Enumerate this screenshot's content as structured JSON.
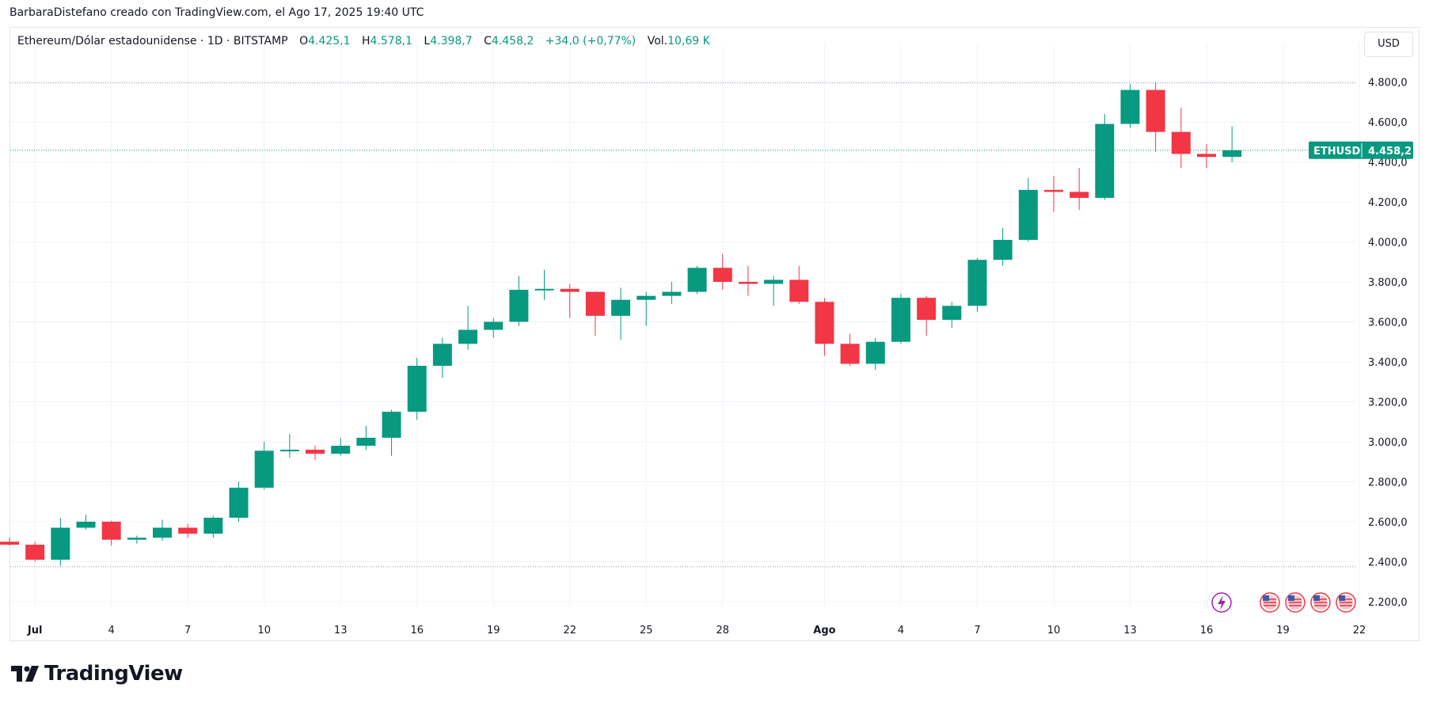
{
  "byline": "BarbaraDistefano creado con TradingView.com, el Ago 17, 2025 19:40 UTC",
  "legend": {
    "symbol": "Ethereum/Dólar estadounidense · 1D · BITSTAMP",
    "open_label": "O",
    "open": "4.425,1",
    "high_label": "H",
    "high": "4.578,1",
    "low_label": "L",
    "low": "4.398,7",
    "close_label": "C",
    "close": "4.458,2",
    "change": "+34,0 (+0,77%)",
    "vol_label": "Vol.",
    "vol": "10,69 K"
  },
  "currency_button": "USD",
  "price_tag": {
    "symbol": "ETHUSD",
    "value": "4.458,2"
  },
  "brand": "TradingView",
  "colors": {
    "up": "#089981",
    "down": "#f23645",
    "grid": "#f0f3fa",
    "text": "#131722"
  },
  "chart_data": {
    "type": "candlestick",
    "x_labels": [
      "Jul",
      "4",
      "7",
      "10",
      "13",
      "16",
      "19",
      "22",
      "25",
      "28",
      "Ago",
      "4",
      "7",
      "10",
      "13",
      "16",
      "19",
      "22"
    ],
    "y_ticks": [
      "2.200,0",
      "2.400,0",
      "2.600,0",
      "2.800,0",
      "3.000,0",
      "3.200,0",
      "3.400,0",
      "3.600,0",
      "3.800,0",
      "4.000,0",
      "4.200,0",
      "4.400,0",
      "4.600,0",
      "4.800,0"
    ],
    "ylim": [
      2150,
      4950
    ],
    "reference_lines": [
      4795,
      2375
    ],
    "current_price": 4458.2,
    "candles": [
      {
        "d": "Jun 30",
        "o": 2500,
        "h": 2520,
        "l": 2480,
        "c": 2485
      },
      {
        "d": "Jul 1",
        "o": 2485,
        "h": 2500,
        "l": 2400,
        "c": 2410
      },
      {
        "d": "Jul 2",
        "o": 2410,
        "h": 2620,
        "l": 2380,
        "c": 2570
      },
      {
        "d": "Jul 3",
        "o": 2570,
        "h": 2635,
        "l": 2560,
        "c": 2600
      },
      {
        "d": "Jul 4",
        "o": 2600,
        "h": 2605,
        "l": 2480,
        "c": 2510
      },
      {
        "d": "Jul 5",
        "o": 2510,
        "h": 2530,
        "l": 2490,
        "c": 2520
      },
      {
        "d": "Jul 6",
        "o": 2520,
        "h": 2610,
        "l": 2505,
        "c": 2570
      },
      {
        "d": "Jul 7",
        "o": 2570,
        "h": 2590,
        "l": 2520,
        "c": 2540
      },
      {
        "d": "Jul 8",
        "o": 2540,
        "h": 2630,
        "l": 2520,
        "c": 2620
      },
      {
        "d": "Jul 9",
        "o": 2620,
        "h": 2800,
        "l": 2600,
        "c": 2770
      },
      {
        "d": "Jul 10",
        "o": 2770,
        "h": 3000,
        "l": 2760,
        "c": 2955
      },
      {
        "d": "Jul 11",
        "o": 2955,
        "h": 3040,
        "l": 2920,
        "c": 2960
      },
      {
        "d": "Jul 12",
        "o": 2960,
        "h": 2980,
        "l": 2910,
        "c": 2940
      },
      {
        "d": "Jul 13",
        "o": 2940,
        "h": 3020,
        "l": 2930,
        "c": 2980
      },
      {
        "d": "Jul 14",
        "o": 2980,
        "h": 3080,
        "l": 2960,
        "c": 3020
      },
      {
        "d": "Jul 15",
        "o": 3020,
        "h": 3160,
        "l": 2930,
        "c": 3150
      },
      {
        "d": "Jul 16",
        "o": 3150,
        "h": 3420,
        "l": 3110,
        "c": 3380
      },
      {
        "d": "Jul 17",
        "o": 3380,
        "h": 3520,
        "l": 3320,
        "c": 3490
      },
      {
        "d": "Jul 18",
        "o": 3490,
        "h": 3680,
        "l": 3460,
        "c": 3560
      },
      {
        "d": "Jul 19",
        "o": 3560,
        "h": 3620,
        "l": 3520,
        "c": 3600
      },
      {
        "d": "Jul 20",
        "o": 3600,
        "h": 3830,
        "l": 3580,
        "c": 3760
      },
      {
        "d": "Jul 21",
        "o": 3760,
        "h": 3860,
        "l": 3710,
        "c": 3765
      },
      {
        "d": "Jul 22",
        "o": 3765,
        "h": 3790,
        "l": 3620,
        "c": 3750
      },
      {
        "d": "Jul 23",
        "o": 3750,
        "h": 3750,
        "l": 3530,
        "c": 3630
      },
      {
        "d": "Jul 24",
        "o": 3630,
        "h": 3770,
        "l": 3510,
        "c": 3710
      },
      {
        "d": "Jul 25",
        "o": 3710,
        "h": 3750,
        "l": 3580,
        "c": 3730
      },
      {
        "d": "Jul 26",
        "o": 3730,
        "h": 3800,
        "l": 3690,
        "c": 3750
      },
      {
        "d": "Jul 27",
        "o": 3750,
        "h": 3880,
        "l": 3740,
        "c": 3870
      },
      {
        "d": "Jul 28",
        "o": 3870,
        "h": 3940,
        "l": 3760,
        "c": 3800
      },
      {
        "d": "Jul 29",
        "o": 3800,
        "h": 3880,
        "l": 3730,
        "c": 3790
      },
      {
        "d": "Jul 30",
        "o": 3790,
        "h": 3830,
        "l": 3680,
        "c": 3810
      },
      {
        "d": "Jul 31",
        "o": 3810,
        "h": 3880,
        "l": 3690,
        "c": 3700
      },
      {
        "d": "Ago 1",
        "o": 3700,
        "h": 3720,
        "l": 3430,
        "c": 3490
      },
      {
        "d": "Ago 2",
        "o": 3490,
        "h": 3540,
        "l": 3380,
        "c": 3390
      },
      {
        "d": "Ago 3",
        "o": 3390,
        "h": 3520,
        "l": 3360,
        "c": 3500
      },
      {
        "d": "Ago 4",
        "o": 3500,
        "h": 3740,
        "l": 3490,
        "c": 3720
      },
      {
        "d": "Ago 5",
        "o": 3720,
        "h": 3730,
        "l": 3530,
        "c": 3610
      },
      {
        "d": "Ago 6",
        "o": 3610,
        "h": 3700,
        "l": 3570,
        "c": 3680
      },
      {
        "d": "Ago 7",
        "o": 3680,
        "h": 3920,
        "l": 3650,
        "c": 3910
      },
      {
        "d": "Ago 8",
        "o": 3910,
        "h": 4070,
        "l": 3880,
        "c": 4010
      },
      {
        "d": "Ago 9",
        "o": 4010,
        "h": 4320,
        "l": 4000,
        "c": 4260
      },
      {
        "d": "Ago 10",
        "o": 4260,
        "h": 4330,
        "l": 4150,
        "c": 4250
      },
      {
        "d": "Ago 11",
        "o": 4250,
        "h": 4370,
        "l": 4160,
        "c": 4220
      },
      {
        "d": "Ago 12",
        "o": 4220,
        "h": 4640,
        "l": 4210,
        "c": 4590
      },
      {
        "d": "Ago 13",
        "o": 4590,
        "h": 4790,
        "l": 4570,
        "c": 4760
      },
      {
        "d": "Ago 14",
        "o": 4760,
        "h": 4800,
        "l": 4450,
        "c": 4550
      },
      {
        "d": "Ago 15",
        "o": 4550,
        "h": 4670,
        "l": 4370,
        "c": 4440
      },
      {
        "d": "Ago 16",
        "o": 4440,
        "h": 4490,
        "l": 4370,
        "c": 4425
      },
      {
        "d": "Ago 17",
        "o": 4425.1,
        "h": 4578.1,
        "l": 4398.7,
        "c": 4458.2
      }
    ]
  }
}
